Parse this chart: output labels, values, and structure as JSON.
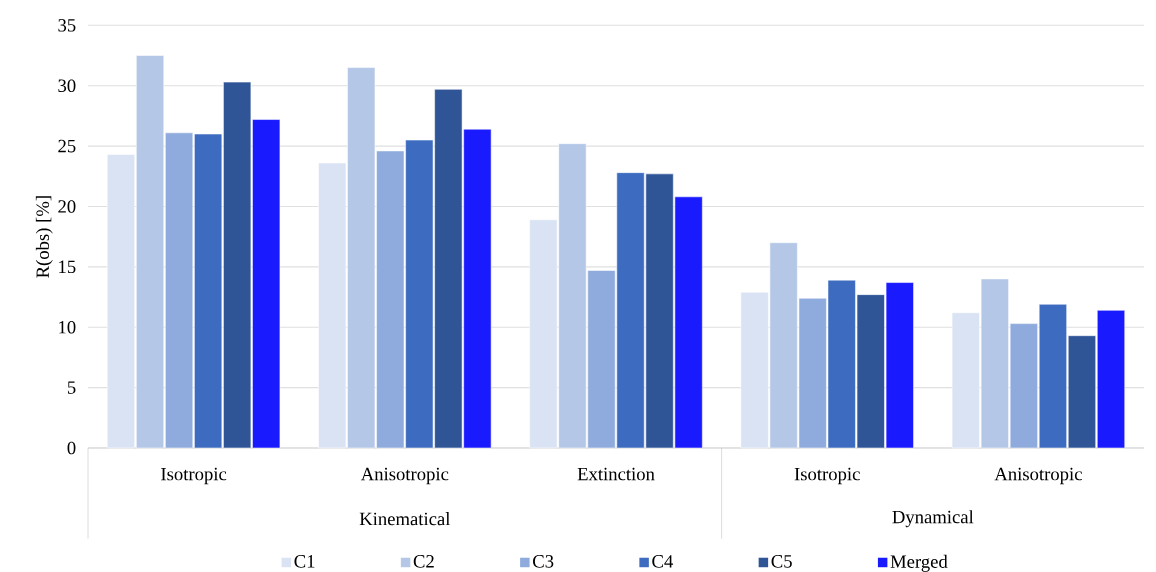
{
  "chart_data": {
    "type": "bar",
    "ylabel": "R(obs) [%]",
    "categories": [
      "Isotropic",
      "Anisotropic",
      "Extinction",
      "Isotropic",
      "Anisotropic"
    ],
    "annotations": [
      "Kinematical",
      "Dynamical"
    ],
    "ylim": [
      0,
      35
    ],
    "yticks": [
      0,
      5,
      10,
      15,
      20,
      25,
      30,
      35
    ],
    "grid": "y",
    "legend": "bottom",
    "series": [
      {
        "name": "C1",
        "color": "#dae3f3",
        "values": [
          24.3,
          23.6,
          18.9,
          12.9,
          11.2
        ]
      },
      {
        "name": "C2",
        "color": "#b4c7e7",
        "values": [
          32.5,
          31.5,
          25.2,
          17.0,
          14.0
        ]
      },
      {
        "name": "C3",
        "color": "#8faadc",
        "values": [
          26.1,
          24.6,
          14.7,
          12.4,
          10.3
        ]
      },
      {
        "name": "C4",
        "color": "#3c6bbf",
        "values": [
          26.0,
          25.5,
          22.8,
          13.9,
          11.9
        ]
      },
      {
        "name": "C5",
        "color": "#2f5597",
        "values": [
          30.3,
          29.7,
          22.7,
          12.7,
          9.3
        ]
      },
      {
        "name": "Merged",
        "color": "#1a1aff",
        "values": [
          27.2,
          26.4,
          20.8,
          13.7,
          11.4
        ]
      }
    ]
  }
}
